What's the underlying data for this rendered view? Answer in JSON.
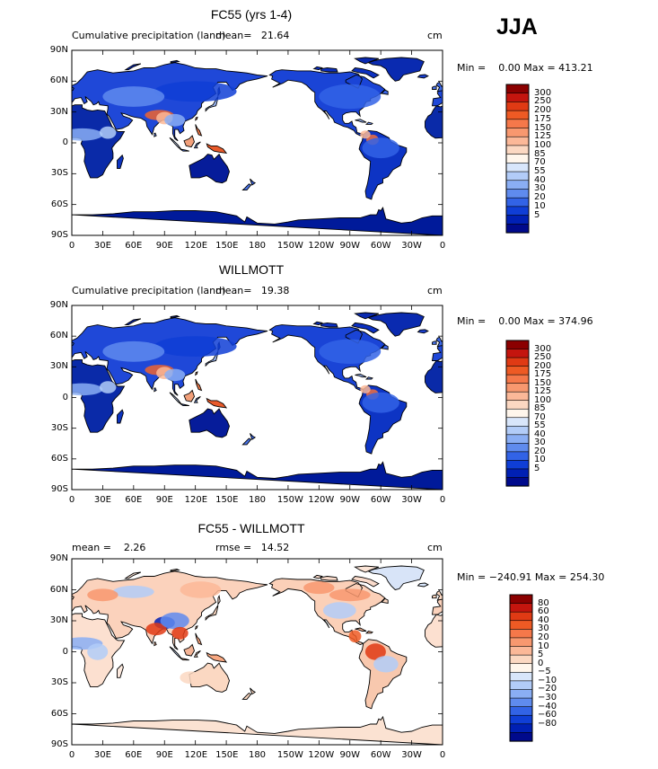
{
  "season": "JJA",
  "lon_ticks": [
    "0",
    "30E",
    "60E",
    "90E",
    "120E",
    "150E",
    "180",
    "150W",
    "120W",
    "90W",
    "60W",
    "30W",
    "0"
  ],
  "lat_ticks": [
    "90N",
    "60N",
    "30N",
    "0",
    "30S",
    "60S",
    "90S"
  ],
  "panels": [
    {
      "title": "FC55 (yrs 1-4)",
      "sub_left": "Cumulative precipitation (land)",
      "sub_mid": "mean=   21.64",
      "unit": "cm",
      "minmax": "Min =    0.00 Max = 413.21",
      "colorbar_labels": [
        "300",
        "250",
        "200",
        "175",
        "150",
        "125",
        "100",
        "85",
        "70",
        "55",
        "40",
        "30",
        "20",
        "10",
        "5"
      ],
      "palette": "precip"
    },
    {
      "title": "WILLMOTT",
      "sub_left": "Cumulative precipitation (land)",
      "sub_mid": "mean=   19.38",
      "unit": "cm",
      "minmax": "Min =    0.00 Max = 374.96",
      "colorbar_labels": [
        "300",
        "250",
        "200",
        "175",
        "150",
        "125",
        "100",
        "85",
        "70",
        "55",
        "40",
        "30",
        "20",
        "10",
        "5"
      ],
      "palette": "precip"
    },
    {
      "title": "FC55 - WILLMOTT",
      "sub_left": "mean =    2.26",
      "sub_mid": "rmse =   14.52",
      "unit": "cm",
      "minmax": "Min = −240.91 Max = 254.30",
      "colorbar_labels": [
        "80",
        "60",
        "40",
        "30",
        "20",
        "10",
        "5",
        "0",
        "−5",
        "−10",
        "−20",
        "−30",
        "−40",
        "−60",
        "−80"
      ],
      "palette": "diff"
    }
  ],
  "colors": {
    "precip": [
      "#8b0000",
      "#c4150e",
      "#e03a14",
      "#ee5a24",
      "#f5784a",
      "#f8986f",
      "#fbb898",
      "#fbd8c2",
      "#fff6ec",
      "#d8e6fb",
      "#b2ccf8",
      "#8aaef4",
      "#5f8bee",
      "#3263e6",
      "#0f3ed6",
      "#0020b4",
      "#000a8c"
    ],
    "diff": [
      "#8b0000",
      "#c4150e",
      "#e03a14",
      "#ee5a24",
      "#f5784a",
      "#f8986f",
      "#fbb898",
      "#fbd8c2",
      "#fff6ec",
      "#d8e6fb",
      "#b2ccf8",
      "#8aaef4",
      "#5f8bee",
      "#3263e6",
      "#0f3ed6",
      "#0020b4",
      "#000a8c"
    ]
  }
}
